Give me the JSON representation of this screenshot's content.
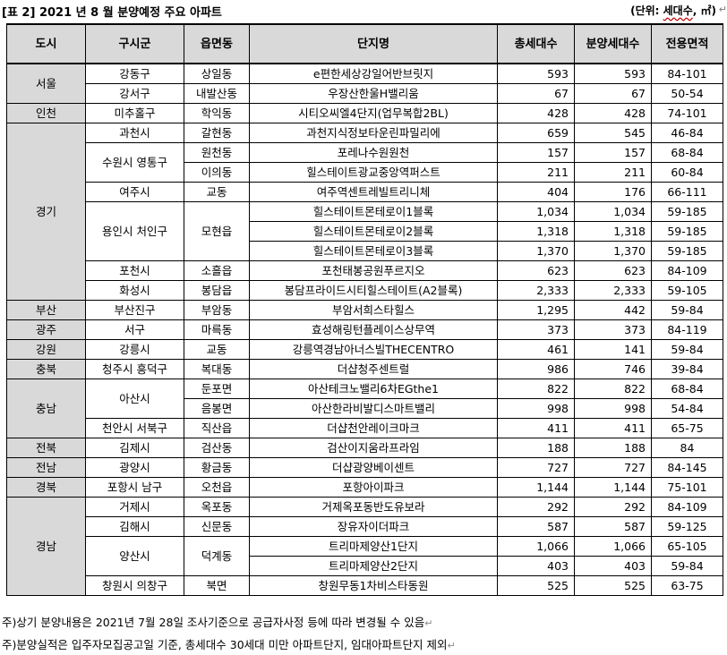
{
  "title": "[표 2] 2021 년 8 월 분양예정 주요 아파트",
  "unit": {
    "prefix": "(단위: ",
    "underlined": "세대수",
    "suffix": ", ㎡)"
  },
  "headers": [
    "도시",
    "구시군",
    "읍면동",
    "단지명",
    "총세대수",
    "분양세대수",
    "전용면적"
  ],
  "rows": [
    {
      "city": "서울",
      "gu": "강동구",
      "dong": "상일동",
      "name": "e편한세상강일어반브릿지",
      "total": "593",
      "sale": "593",
      "area": "84-101"
    },
    {
      "city": "",
      "gu": "강서구",
      "dong": "내발산동",
      "name": "우장산한울H밸리움",
      "total": "67",
      "sale": "67",
      "area": "50-54"
    },
    {
      "city": "인천",
      "gu": "미추홀구",
      "dong": "학익동",
      "name": "시티오씨엘4단지(업무복합2BL)",
      "total": "428",
      "sale": "428",
      "area": "74-101"
    },
    {
      "city": "경기",
      "gu": "과천시",
      "dong": "갈현동",
      "name": "과천지식정보타운린파밀리에",
      "total": "659",
      "sale": "545",
      "area": "46-84"
    },
    {
      "city": "",
      "gu": "수원시 영통구",
      "dong": "원천동",
      "name": "포레나수원원천",
      "total": "157",
      "sale": "157",
      "area": "68-84"
    },
    {
      "city": "",
      "gu": "",
      "dong": "이의동",
      "name": "힐스테이트광교중앙역퍼스트",
      "total": "211",
      "sale": "211",
      "area": "60-84"
    },
    {
      "city": "",
      "gu": "여주시",
      "dong": "교동",
      "name": "여주역센트레빌트리니체",
      "total": "404",
      "sale": "176",
      "area": "66-111"
    },
    {
      "city": "",
      "gu": "용인시 처인구",
      "dong": "모현읍",
      "name": "힐스테이트몬테로이1블록",
      "total": "1,034",
      "sale": "1,034",
      "area": "59-185"
    },
    {
      "city": "",
      "gu": "",
      "dong": "",
      "name": "힐스테이트몬테로이2블록",
      "total": "1,318",
      "sale": "1,318",
      "area": "59-185"
    },
    {
      "city": "",
      "gu": "",
      "dong": "",
      "name": "힐스테이트몬테로이3블록",
      "total": "1,370",
      "sale": "1,370",
      "area": "59-185"
    },
    {
      "city": "",
      "gu": "포천시",
      "dong": "소흘읍",
      "name": "포천태봉공원푸르지오",
      "total": "623",
      "sale": "623",
      "area": "84-109"
    },
    {
      "city": "",
      "gu": "화성시",
      "dong": "봉담읍",
      "name": "봉담프라이드시티힐스테이트(A2블록)",
      "total": "2,333",
      "sale": "2,333",
      "area": "59-105"
    },
    {
      "city": "부산",
      "gu": "부산진구",
      "dong": "부암동",
      "name": "부암서희스타힐스",
      "total": "1,295",
      "sale": "442",
      "area": "59-84"
    },
    {
      "city": "광주",
      "gu": "서구",
      "dong": "마륵동",
      "name": "효성해링턴플레이스상무역",
      "total": "373",
      "sale": "373",
      "area": "84-119"
    },
    {
      "city": "강원",
      "gu": "강릉시",
      "dong": "교동",
      "name": "강릉역경남아너스빌THECENTRO",
      "total": "461",
      "sale": "141",
      "area": "59-84"
    },
    {
      "city": "충북",
      "gu": "청주시 흥덕구",
      "dong": "복대동",
      "name": "더샵청주센트럴",
      "total": "986",
      "sale": "746",
      "area": "39-84"
    },
    {
      "city": "충남",
      "gu": "아산시",
      "dong": "둔포면",
      "name": "아산테크노밸리6차EGthe1",
      "total": "822",
      "sale": "822",
      "area": "68-84"
    },
    {
      "city": "",
      "gu": "",
      "dong": "음봉면",
      "name": "아산한라비발디스마트밸리",
      "total": "998",
      "sale": "998",
      "area": "54-84"
    },
    {
      "city": "",
      "gu": "천안시 서북구",
      "dong": "직산읍",
      "name": "더샵천안레이크마크",
      "total": "411",
      "sale": "411",
      "area": "65-75"
    },
    {
      "city": "전북",
      "gu": "김제시",
      "dong": "검산동",
      "name": "검산이지움라프라임",
      "total": "188",
      "sale": "188",
      "area": "84"
    },
    {
      "city": "전남",
      "gu": "광양시",
      "dong": "황금동",
      "name": "더샵광양베이센트",
      "total": "727",
      "sale": "727",
      "area": "84-145"
    },
    {
      "city": "경북",
      "gu": "포항시 남구",
      "dong": "오천읍",
      "name": "포항아이파크",
      "total": "1,144",
      "sale": "1,144",
      "area": "75-101"
    },
    {
      "city": "경남",
      "gu": "거제시",
      "dong": "옥포동",
      "name": "거제옥포동반도유보라",
      "total": "292",
      "sale": "292",
      "area": "84-109"
    },
    {
      "city": "",
      "gu": "김해시",
      "dong": "신문동",
      "name": "장유자이더파크",
      "total": "587",
      "sale": "587",
      "area": "59-125"
    },
    {
      "city": "",
      "gu": "양산시",
      "dong": "덕계동",
      "name": "트리마제양산1단지",
      "total": "1,066",
      "sale": "1,066",
      "area": "65-105"
    },
    {
      "city": "",
      "gu": "",
      "dong": "",
      "name": "트리마제양산2단지",
      "total": "403",
      "sale": "403",
      "area": "59-84"
    },
    {
      "city": "",
      "gu": "창원시 의창구",
      "dong": "북면",
      "name": "창원무동1차비스타동원",
      "total": "525",
      "sale": "525",
      "area": "63-75"
    }
  ],
  "notes": [
    "주)상기 분양내용은 2021년 7월 28일 조사기준으로 공급자사정 등에 따라 변경될 수 있음",
    "주)분양실적은 입주자모집공고일 기준, 총세대수 30세대 미만 아파트단지, 임대아파트단지 제외"
  ]
}
